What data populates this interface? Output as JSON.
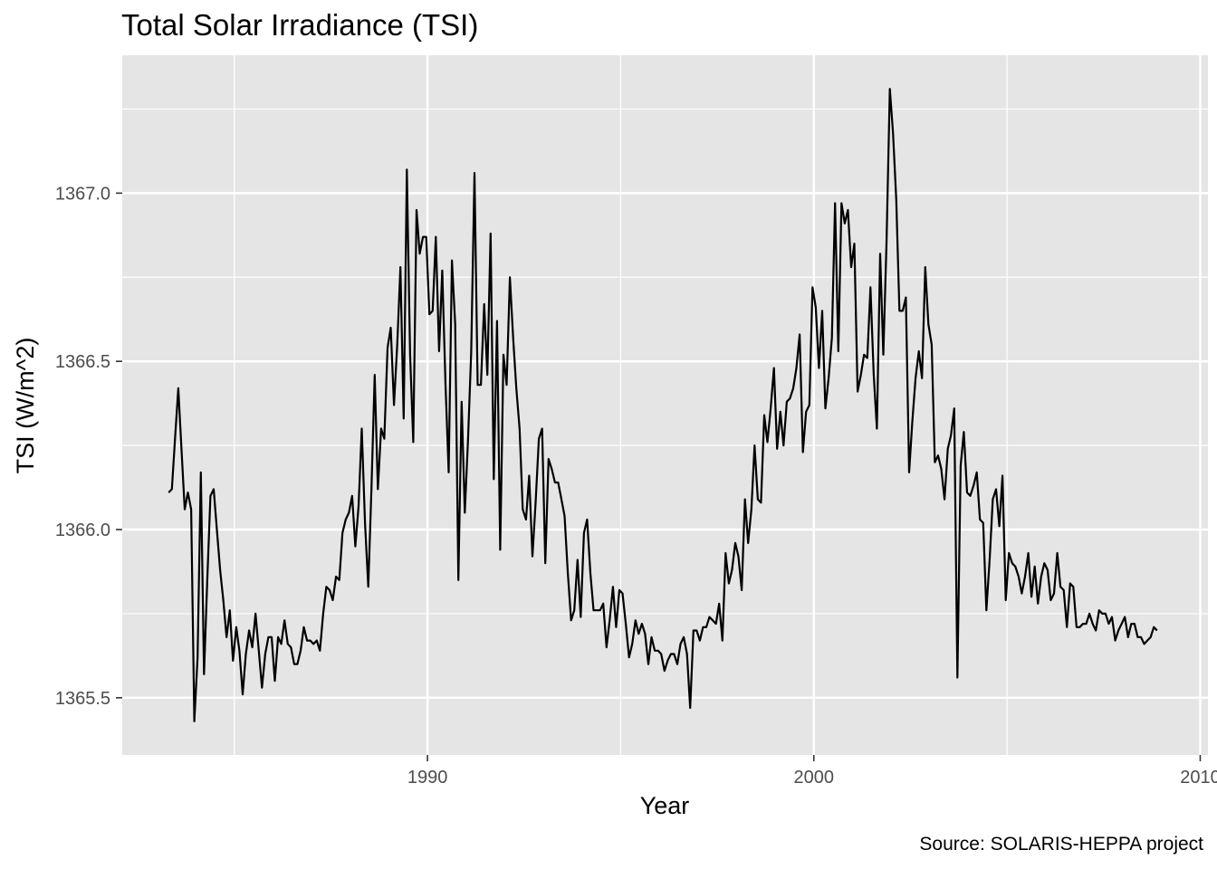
{
  "chart_data": {
    "type": "line",
    "title": "Total Solar Irradiance (TSI)",
    "xlabel": "Year",
    "ylabel": "TSI (W/m^2)",
    "caption": "Source: SOLARIS-HEPPA project",
    "xlim": [
      1982.1,
      2010.2
    ],
    "ylim": [
      1365.33,
      1367.41
    ],
    "x_ticks": [
      1990,
      2000,
      2010
    ],
    "x_tick_labels": [
      "1990",
      "2000",
      "2010"
    ],
    "y_ticks": [
      1365.5,
      1366.0,
      1366.5,
      1367.0
    ],
    "y_tick_labels": [
      "1365.5",
      "1366.0",
      "1366.5",
      "1367.0"
    ],
    "grid": true,
    "background": "#e5e5e5",
    "line_color": "#000000",
    "series": [
      {
        "x_start": 1983.3,
        "step": 0.08333,
        "values": [
          1366.11,
          1366.12,
          1366.27,
          1366.42,
          1366.24,
          1366.06,
          1366.11,
          1366.06,
          1365.43,
          1365.62,
          1366.17,
          1365.57,
          1365.85,
          1366.1,
          1366.12,
          1366.0,
          1365.88,
          1365.79,
          1365.68,
          1365.76,
          1365.61,
          1365.71,
          1365.64,
          1365.51,
          1365.63,
          1365.7,
          1365.65,
          1365.75,
          1365.64,
          1365.53,
          1365.63,
          1365.68,
          1365.68,
          1365.55,
          1365.68,
          1365.66,
          1365.73,
          1365.66,
          1365.65,
          1365.6,
          1365.6,
          1365.64,
          1365.71,
          1365.67,
          1365.67,
          1365.66,
          1365.67,
          1365.64,
          1365.75,
          1365.83,
          1365.82,
          1365.79,
          1365.86,
          1365.85,
          1365.99,
          1366.03,
          1366.05,
          1366.1,
          1365.95,
          1366.07,
          1366.3,
          1366.02,
          1365.83,
          1366.12,
          1366.46,
          1366.12,
          1366.3,
          1366.27,
          1366.54,
          1366.6,
          1366.37,
          1366.55,
          1366.78,
          1366.33,
          1367.07,
          1366.52,
          1366.26,
          1366.95,
          1366.82,
          1366.87,
          1366.87,
          1366.64,
          1366.65,
          1366.87,
          1366.53,
          1366.77,
          1366.43,
          1366.17,
          1366.8,
          1366.61,
          1365.85,
          1366.38,
          1366.05,
          1366.27,
          1366.53,
          1367.06,
          1366.43,
          1366.43,
          1366.67,
          1366.46,
          1366.88,
          1366.15,
          1366.62,
          1365.94,
          1366.52,
          1366.43,
          1366.75,
          1366.57,
          1366.42,
          1366.3,
          1366.06,
          1366.03,
          1366.16,
          1365.92,
          1366.08,
          1366.27,
          1366.3,
          1365.9,
          1366.21,
          1366.18,
          1366.14,
          1366.14,
          1366.09,
          1366.04,
          1365.87,
          1365.73,
          1365.76,
          1365.91,
          1365.74,
          1365.99,
          1366.03,
          1365.87,
          1365.76,
          1365.76,
          1365.76,
          1365.78,
          1365.65,
          1365.73,
          1365.83,
          1365.71,
          1365.82,
          1365.81,
          1365.72,
          1365.62,
          1365.66,
          1365.73,
          1365.69,
          1365.72,
          1365.69,
          1365.6,
          1365.68,
          1365.64,
          1365.64,
          1365.63,
          1365.58,
          1365.61,
          1365.63,
          1365.63,
          1365.6,
          1365.66,
          1365.68,
          1365.63,
          1365.47,
          1365.7,
          1365.7,
          1365.67,
          1365.71,
          1365.71,
          1365.74,
          1365.73,
          1365.72,
          1365.78,
          1365.67,
          1365.93,
          1365.84,
          1365.88,
          1365.96,
          1365.92,
          1365.82,
          1366.09,
          1365.96,
          1366.06,
          1366.25,
          1366.09,
          1366.08,
          1366.34,
          1366.26,
          1366.36,
          1366.48,
          1366.24,
          1366.35,
          1366.25,
          1366.38,
          1366.39,
          1366.42,
          1366.48,
          1366.58,
          1366.23,
          1366.35,
          1366.37,
          1366.72,
          1366.66,
          1366.48,
          1366.65,
          1366.36,
          1366.45,
          1366.57,
          1366.97,
          1366.53,
          1366.97,
          1366.91,
          1366.95,
          1366.78,
          1366.85,
          1366.41,
          1366.46,
          1366.52,
          1366.51,
          1366.72,
          1366.46,
          1366.3,
          1366.82,
          1366.52,
          1366.86,
          1367.31,
          1367.18,
          1366.98,
          1366.65,
          1366.65,
          1366.69,
          1366.17,
          1366.32,
          1366.45,
          1366.53,
          1366.45,
          1366.78,
          1366.61,
          1366.55,
          1366.2,
          1366.22,
          1366.18,
          1366.09,
          1366.24,
          1366.28,
          1366.36,
          1365.56,
          1366.19,
          1366.29,
          1366.11,
          1366.1,
          1366.13,
          1366.17,
          1366.03,
          1366.02,
          1365.76,
          1365.91,
          1366.09,
          1366.12,
          1366.01,
          1366.16,
          1365.79,
          1365.93,
          1365.9,
          1365.89,
          1365.86,
          1365.81,
          1365.86,
          1365.93,
          1365.8,
          1365.89,
          1365.78,
          1365.86,
          1365.9,
          1365.88,
          1365.79,
          1365.81,
          1365.93,
          1365.83,
          1365.82,
          1365.71,
          1365.84,
          1365.83,
          1365.71,
          1365.71,
          1365.72,
          1365.72,
          1365.75,
          1365.72,
          1365.7,
          1365.76,
          1365.75,
          1365.75,
          1365.72,
          1365.74,
          1365.67,
          1365.7,
          1365.72,
          1365.74,
          1365.68,
          1365.72,
          1365.72,
          1365.68,
          1365.68,
          1365.66,
          1365.67,
          1365.68,
          1365.71,
          1365.7
        ]
      }
    ]
  }
}
